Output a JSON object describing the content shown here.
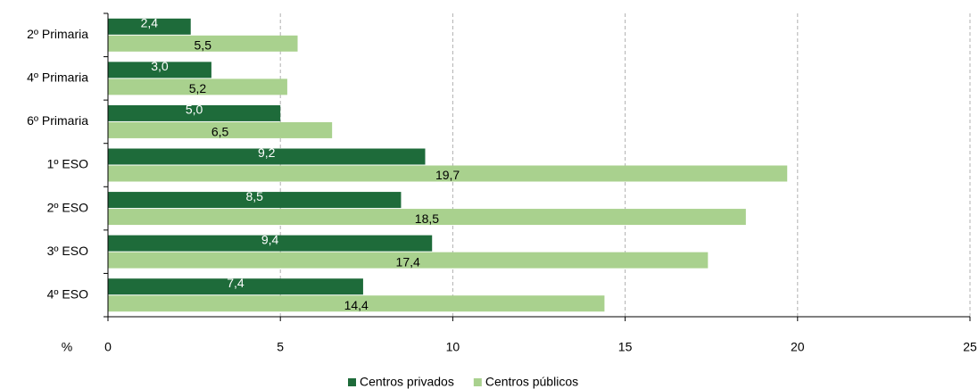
{
  "chart_data": {
    "type": "hbar",
    "xlabel": "%",
    "categories": [
      "2º Primaria",
      "4º Primaria",
      "6º Primaria",
      "1º ESO",
      "2º ESO",
      "3º ESO",
      "4º ESO"
    ],
    "series": [
      {
        "name": "Centros privados",
        "color": "#1e6b3a",
        "label_color": "#ffffff",
        "values": [
          2.4,
          3.0,
          5.0,
          9.2,
          8.5,
          9.4,
          7.4
        ],
        "value_labels": [
          "2,4",
          "3,0",
          "5,0",
          "9,2",
          "8,5",
          "9,4",
          "7,4"
        ]
      },
      {
        "name": "Centros públicos",
        "color": "#a9d18e",
        "label_color": "#000000",
        "values": [
          5.5,
          5.2,
          6.5,
          19.7,
          18.5,
          17.4,
          14.4
        ],
        "value_labels": [
          "5,5",
          "5,2",
          "6,5",
          "19,7",
          "18,5",
          "17,4",
          "14,4"
        ]
      }
    ],
    "xlim": [
      0,
      25
    ],
    "xticks": [
      0,
      5,
      10,
      15,
      20,
      25
    ],
    "grid": true
  }
}
